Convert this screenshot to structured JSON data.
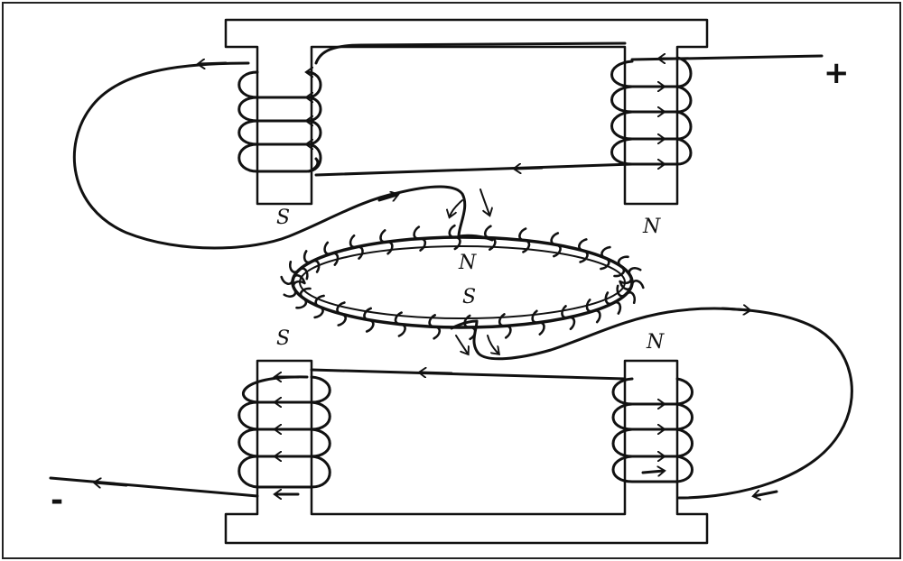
{
  "labels": {
    "upper_left_pole": "S",
    "upper_right_pole": "N",
    "armature_top": "N",
    "armature_bottom": "S",
    "lower_left_pole": "S",
    "lower_right_pole": "N",
    "positive_terminal": "+",
    "negative_terminal": "-"
  },
  "colors": {
    "ink": "#111111",
    "paper": "#ffffff"
  }
}
